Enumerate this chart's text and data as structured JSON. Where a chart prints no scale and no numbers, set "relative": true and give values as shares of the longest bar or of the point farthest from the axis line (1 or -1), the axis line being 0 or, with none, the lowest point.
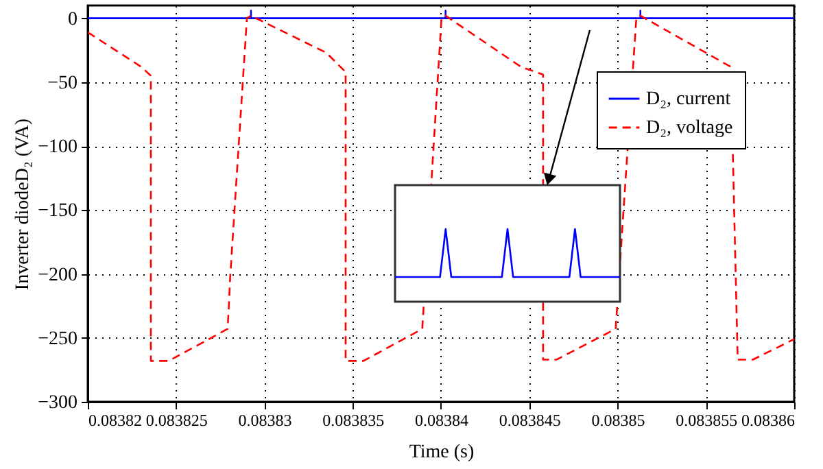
{
  "chart_data": [
    {
      "type": "line",
      "xlabel": "Time (s)",
      "ylabel": "Inverter diodeD₂ (VA)",
      "xlim": [
        0.08382,
        0.08386
      ],
      "xticks": [
        0.08382,
        0.083825,
        0.08383,
        0.083835,
        0.08384,
        0.083845,
        0.08385,
        0.083855,
        0.08386
      ],
      "ylim": [
        -300,
        10
      ],
      "yticks": [
        -300,
        -250,
        -200,
        -150,
        -100,
        -50,
        0
      ],
      "grid": true,
      "legend": "top right",
      "marker": "none",
      "series": [
        {
          "name": "D₂, current",
          "color": "#0000ff",
          "line_style": "solid",
          "x": [
            0.08382,
            0.08382924,
            0.08382924,
            0.08382924,
            0.08384026,
            0.08384026,
            0.08384026,
            0.08385129,
            0.08385129,
            0.08385129,
            0.08386
          ],
          "values": [
            0,
            0,
            6,
            0,
            0,
            6,
            0,
            0,
            6,
            0,
            0
          ]
        },
        {
          "name": "D₂, voltage",
          "color": "#ff0000",
          "line_style": "dashed",
          "x": [
            0.08382,
            0.08382303,
            0.08382357,
            0.08382357,
            0.08382458,
            0.08382792,
            0.08382807,
            0.08382901,
            0.08382924,
            0.08383351,
            0.0838346,
            0.0838346,
            0.08383561,
            0.08383894,
            0.08384003,
            0.08384026,
            0.08384453,
            0.08384578,
            0.08384578,
            0.08384655,
            0.08384989,
            0.08385106,
            0.08385129,
            0.08385641,
            0.0838568,
            0.08385766,
            0.08386
          ],
          "values": [
            -11,
            -38,
            -45,
            -268,
            -268,
            -243,
            -201,
            0,
            2,
            -27,
            -42,
            -268,
            -268,
            -243,
            0,
            2,
            -38,
            -44,
            -267,
            -267,
            -243,
            0,
            2,
            -38,
            -267,
            -267,
            -251
          ]
        }
      ]
    },
    {
      "type": "line",
      "relative": true,
      "categories": [
        null,
        null,
        null,
        null,
        null,
        null,
        null,
        null,
        null,
        null,
        null,
        null,
        null,
        null,
        null,
        null,
        null,
        null,
        null,
        null,
        null,
        null,
        null,
        null,
        null,
        null,
        null,
        null,
        null,
        null,
        null,
        null,
        null,
        null,
        null,
        null,
        null,
        null,
        null,
        null,
        null
      ],
      "color": "#0000ff",
      "values": [
        0,
        0,
        0,
        0,
        0,
        0,
        0,
        0,
        0,
        1,
        0,
        0,
        0,
        0,
        0,
        0,
        0,
        0,
        0,
        0,
        1,
        0,
        0,
        0,
        0,
        0,
        0,
        0,
        0,
        0,
        0,
        0,
        1,
        0,
        0,
        0,
        0,
        0,
        0,
        0,
        0
      ]
    }
  ]
}
